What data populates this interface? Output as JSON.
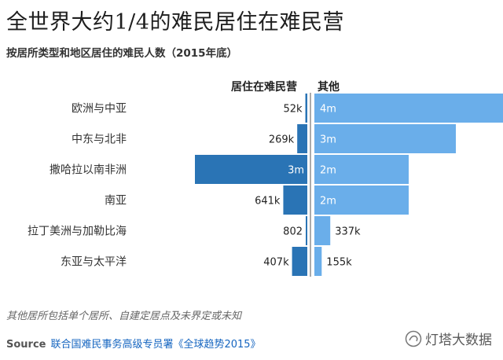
{
  "title": "全世界大约1/4的难民居住在难民营",
  "subtitle": "按居所类型和地区居住的难民人数（2015年底）",
  "note": "其他居所包括单个居所、自建定居点及未界定或未知",
  "source": {
    "key": "Source",
    "value": "联合国难民事务高级专员署《全球趋势2015》"
  },
  "watermark": "灯塔大数据",
  "colors": {
    "camp": "#2a74b5",
    "other": "#6aaeea",
    "divider": "#555555"
  },
  "chart_data": {
    "type": "bar",
    "orientation": "horizontal-diverging",
    "categories": [
      "欧洲与中亚",
      "中东与北非",
      "撒哈拉以南非洲",
      "南亚",
      "拉丁美洲与加勒比海",
      "东亚与太平洋"
    ],
    "series": [
      {
        "name": "居住在难民营",
        "direction": "left",
        "values": [
          52000,
          269000,
          3000000,
          641000,
          802,
          407000
        ],
        "labels": [
          "52k",
          "269k",
          "3m",
          "641k",
          "802",
          "407k"
        ]
      },
      {
        "name": "其他",
        "direction": "right",
        "values": [
          4000000,
          3000000,
          2000000,
          2000000,
          337000,
          155000
        ],
        "labels": [
          "4m",
          "3m",
          "2m",
          "2m",
          "337k",
          "155k"
        ]
      }
    ]
  }
}
